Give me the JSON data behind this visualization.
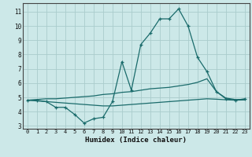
{
  "xlabel": "Humidex (Indice chaleur)",
  "bg_color": "#cce8e8",
  "grid_color": "#aacccc",
  "line_color": "#1a6b6b",
  "xlim": [
    -0.5,
    23.5
  ],
  "ylim": [
    2.8,
    11.6
  ],
  "xticks": [
    0,
    1,
    2,
    3,
    4,
    5,
    6,
    7,
    8,
    9,
    10,
    11,
    12,
    13,
    14,
    15,
    16,
    17,
    18,
    19,
    20,
    21,
    22,
    23
  ],
  "yticks": [
    3,
    4,
    5,
    6,
    7,
    8,
    9,
    10,
    11
  ],
  "series_main_x": [
    0,
    1,
    2,
    3,
    4,
    5,
    6,
    7,
    8,
    9,
    10,
    11,
    12,
    13,
    14,
    15,
    16,
    17,
    18,
    19,
    20,
    21,
    22,
    23
  ],
  "series_main_y": [
    4.8,
    4.8,
    4.7,
    4.3,
    4.3,
    3.8,
    3.2,
    3.5,
    3.6,
    4.7,
    7.5,
    5.5,
    8.7,
    9.5,
    10.5,
    10.5,
    11.2,
    10.0,
    7.8,
    6.8,
    5.4,
    4.9,
    4.8,
    4.9
  ],
  "series_upper_x": [
    0,
    1,
    2,
    3,
    4,
    5,
    6,
    7,
    8,
    9,
    10,
    11,
    12,
    13,
    14,
    15,
    16,
    17,
    18,
    19,
    20,
    21,
    22,
    23
  ],
  "series_upper_y": [
    4.8,
    4.85,
    4.9,
    4.9,
    4.95,
    5.0,
    5.05,
    5.1,
    5.2,
    5.25,
    5.35,
    5.4,
    5.5,
    5.6,
    5.65,
    5.7,
    5.8,
    5.9,
    6.05,
    6.3,
    5.4,
    4.95,
    4.85,
    4.85
  ],
  "series_lower_x": [
    0,
    1,
    2,
    3,
    4,
    5,
    6,
    7,
    8,
    9,
    10,
    11,
    12,
    13,
    14,
    15,
    16,
    17,
    18,
    19,
    20,
    21,
    22,
    23
  ],
  "series_lower_y": [
    4.8,
    4.75,
    4.7,
    4.65,
    4.6,
    4.55,
    4.5,
    4.45,
    4.4,
    4.4,
    4.45,
    4.5,
    4.55,
    4.6,
    4.65,
    4.7,
    4.75,
    4.8,
    4.85,
    4.9,
    4.87,
    4.83,
    4.8,
    4.82
  ]
}
